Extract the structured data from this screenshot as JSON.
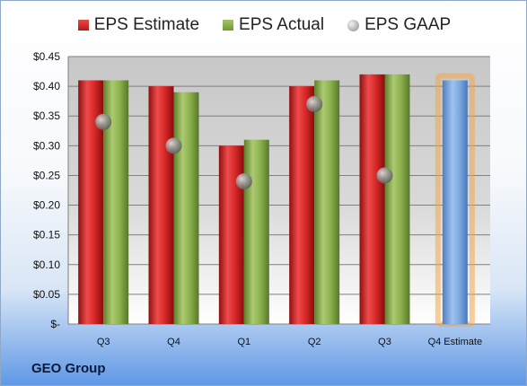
{
  "company": "GEO Group",
  "chart_data": {
    "type": "bar",
    "categories": [
      "Q3",
      "Q4",
      "Q1",
      "Q2",
      "Q3",
      "Q4 Estimate"
    ],
    "series": [
      {
        "name": "EPS Estimate",
        "color": "#cc2222",
        "values": [
          0.41,
          0.4,
          0.3,
          0.4,
          0.42,
          null
        ]
      },
      {
        "name": "EPS Actual",
        "color": "#86ad45",
        "values": [
          0.41,
          0.39,
          0.31,
          0.41,
          0.42,
          null
        ]
      },
      {
        "name": "EPS GAAP",
        "color": "#9a9a9a",
        "marker": "circle",
        "values": [
          0.34,
          0.3,
          0.24,
          0.37,
          0.25,
          null
        ]
      },
      {
        "name": "Q4 Estimate",
        "color": "#6f9fd8",
        "highlight": "#f3a64a",
        "values": [
          null,
          null,
          null,
          null,
          null,
          0.41
        ]
      }
    ],
    "legend_position": "top",
    "ylim": [
      0,
      0.45
    ],
    "yticks": [
      0,
      0.05,
      0.1,
      0.15,
      0.2,
      0.25,
      0.3,
      0.35,
      0.4,
      0.45
    ],
    "ytick_labels": [
      "$-",
      "$0.05",
      "$0.10",
      "$0.15",
      "$0.20",
      "$0.25",
      "$0.30",
      "$0.35",
      "$0.40",
      "$0.45"
    ],
    "grid": true
  }
}
